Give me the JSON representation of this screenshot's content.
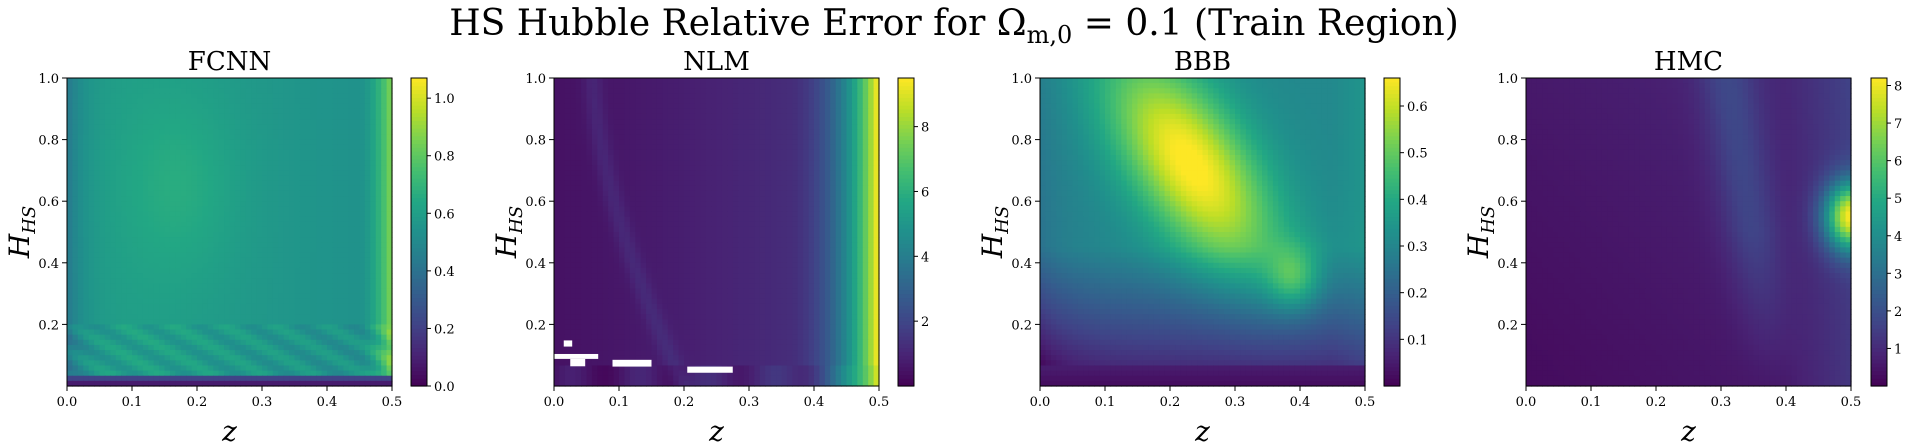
{
  "title": "HS Hubble Relative Error for Ω",
  "title_sub": "m,0",
  "title_rest": " = 0.1 (Train Region)",
  "chart_data": [
    {
      "type": "heatmap",
      "title": "FCNN",
      "xlabel": "z",
      "ylabel": "H",
      "ylabel_sub": "HS",
      "xlim": [
        0,
        0.5
      ],
      "ylim": [
        0,
        1.0
      ],
      "xticks": [
        "0.0",
        "0.1",
        "0.2",
        "0.3",
        "0.4",
        "0.5"
      ],
      "yticks": [
        "0.2",
        "0.4",
        "0.6",
        "0.8",
        "1.0"
      ],
      "colorbar": {
        "min": 0.0,
        "max": 1.07,
        "ticks": [
          "0.0",
          "0.2",
          "0.4",
          "0.6",
          "0.8",
          "1.0"
        ],
        "colormap": "viridis"
      },
      "description_values": {
        "bulk": 0.65,
        "left_edge": 0.5,
        "right_edge": 1.05,
        "bottom_band": 0.05
      }
    },
    {
      "type": "heatmap",
      "title": "NLM",
      "xlabel": "z",
      "ylabel": "H",
      "ylabel_sub": "HS",
      "xlim": [
        0,
        0.5
      ],
      "ylim": [
        0,
        1.0
      ],
      "xticks": [
        "0.0",
        "0.1",
        "0.2",
        "0.3",
        "0.4",
        "0.5"
      ],
      "yticks": [
        "0.2",
        "0.4",
        "0.6",
        "0.8",
        "1.0"
      ],
      "colorbar": {
        "min": 0.0,
        "max": 9.5,
        "ticks": [
          "2",
          "4",
          "6",
          "8"
        ],
        "colormap": "viridis"
      },
      "description_values": {
        "bulk": 0.5,
        "right_edge": 9.0
      }
    },
    {
      "type": "heatmap",
      "title": "BBB",
      "xlabel": "z",
      "ylabel": "H",
      "ylabel_sub": "HS",
      "xlim": [
        0,
        0.5
      ],
      "ylim": [
        0,
        1.0
      ],
      "xticks": [
        "0.0",
        "0.1",
        "0.2",
        "0.3",
        "0.4",
        "0.5"
      ],
      "yticks": [
        "0.2",
        "0.4",
        "0.6",
        "0.8",
        "1.0"
      ],
      "colorbar": {
        "min": 0.0,
        "max": 0.66,
        "ticks": [
          "0.1",
          "0.2",
          "0.3",
          "0.4",
          "0.5",
          "0.6"
        ],
        "colormap": "viridis"
      },
      "description_values": {
        "peak": 0.64,
        "peak_z": 0.28,
        "peak_H": 0.72
      }
    },
    {
      "type": "heatmap",
      "title": "HMC",
      "xlabel": "z",
      "ylabel": "H",
      "ylabel_sub": "HS",
      "xlim": [
        0,
        0.5
      ],
      "ylim": [
        0,
        1.0
      ],
      "xticks": [
        "0.0",
        "0.1",
        "0.2",
        "0.3",
        "0.4",
        "0.5"
      ],
      "yticks": [
        "0.2",
        "0.4",
        "0.6",
        "0.8",
        "1.0"
      ],
      "colorbar": {
        "min": 0.0,
        "max": 8.2,
        "ticks": [
          "1",
          "2",
          "3",
          "4",
          "5",
          "6",
          "7",
          "8"
        ],
        "colormap": "viridis"
      },
      "description_values": {
        "peak": 7.5,
        "peak_z": 0.5,
        "peak_H": 0.55
      }
    }
  ]
}
